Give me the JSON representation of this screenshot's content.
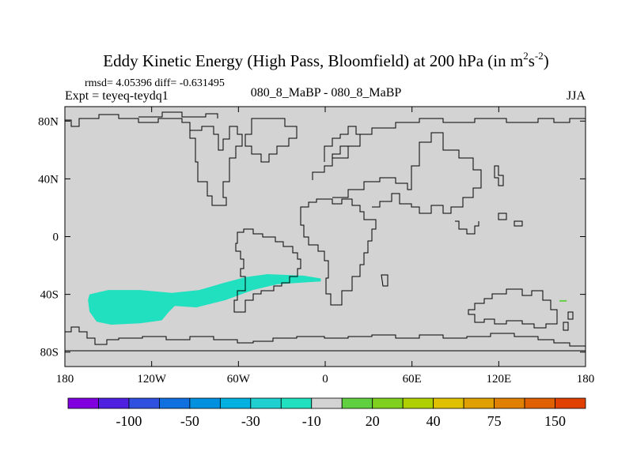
{
  "chart_data": {
    "type": "contour-map",
    "title": "Eddy Kinetic Energy (High Pass, Bloomfield) at 200 hPa (in m",
    "title_unit_sup1": "2",
    "title_unit_s": "s",
    "title_unit_sup2": "-2",
    "title_close": ")",
    "stats": "rmsd= 4.05396 diff= -0.631495",
    "expt": "Expt = teyeq-teydq1",
    "comparison": "080_8_MaBP - 080_8_MaBP",
    "season": "JJA",
    "lon_range": [
      -180,
      180
    ],
    "lat_range": [
      -90,
      90
    ],
    "x_ticks": [
      {
        "lon": -180,
        "label": "180"
      },
      {
        "lon": -120,
        "label": "120W"
      },
      {
        "lon": -60,
        "label": "60W"
      },
      {
        "lon": 0,
        "label": "0"
      },
      {
        "lon": 60,
        "label": "60E"
      },
      {
        "lon": 120,
        "label": "120E"
      },
      {
        "lon": 180,
        "label": "180"
      }
    ],
    "y_ticks": [
      {
        "lat": 80,
        "label": "80N"
      },
      {
        "lat": 40,
        "label": "40N"
      },
      {
        "lat": 0,
        "label": "0"
      },
      {
        "lat": -40,
        "label": "40S"
      },
      {
        "lat": -80,
        "label": "80S"
      }
    ],
    "background_color": "#d3d3d3",
    "anomaly_regions": [
      {
        "name": "southern-pacific-negative",
        "level": -10,
        "color": "#20e0c0",
        "outline": [
          [
            -163,
            -40
          ],
          [
            -150,
            -37
          ],
          [
            -128,
            -37
          ],
          [
            -106,
            -39
          ],
          [
            -87,
            -37
          ],
          [
            -70,
            -32
          ],
          [
            -55,
            -28
          ],
          [
            -40,
            -26
          ],
          [
            -15,
            -27
          ],
          [
            -3,
            -29
          ],
          [
            -3,
            -31
          ],
          [
            -18,
            -32
          ],
          [
            -33,
            -33
          ],
          [
            -50,
            -37
          ],
          [
            -69,
            -44
          ],
          [
            -89,
            -49
          ],
          [
            -104,
            -48
          ],
          [
            -108,
            -52
          ],
          [
            -113,
            -58
          ],
          [
            -128,
            -60
          ],
          [
            -148,
            -61
          ],
          [
            -158,
            -59
          ],
          [
            -163,
            -52
          ],
          [
            -164,
            -44
          ]
        ]
      },
      {
        "name": "pacific-positive-dot",
        "level": 20,
        "color": "#60d040",
        "outline": [
          [
            162,
            -44
          ],
          [
            167,
            -44
          ],
          [
            167,
            -45
          ],
          [
            162,
            -45
          ]
        ]
      }
    ],
    "colorbar": {
      "colors": [
        "#8000e0",
        "#5020e0",
        "#3050e0",
        "#1070e0",
        "#0090e0",
        "#00b0e0",
        "#20d0d0",
        "#20e0c0",
        "#d3d3d3",
        "#60d040",
        "#80d020",
        "#b0d000",
        "#e0c000",
        "#e0a000",
        "#e08000",
        "#e06000",
        "#e04000"
      ],
      "labels": [
        {
          "boundary": 2,
          "text": "-100"
        },
        {
          "boundary": 4,
          "text": "-50"
        },
        {
          "boundary": 6,
          "text": "-30"
        },
        {
          "boundary": 8,
          "text": "-10"
        },
        {
          "boundary": 10,
          "text": "20"
        },
        {
          "boundary": 12,
          "text": "40"
        },
        {
          "boundary": 14,
          "text": "75"
        },
        {
          "boundary": 16,
          "text": "150"
        }
      ]
    }
  }
}
